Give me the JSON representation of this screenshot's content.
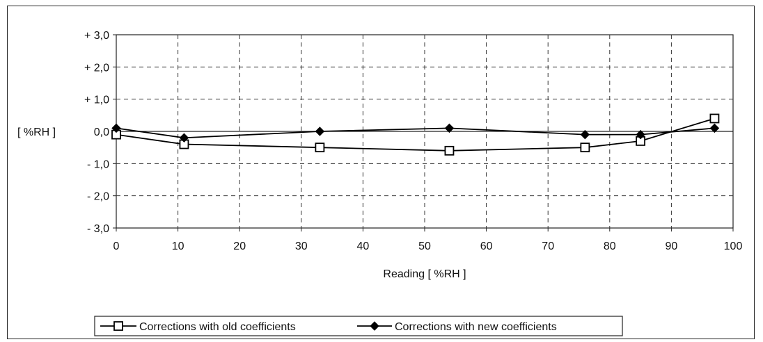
{
  "chart_data": {
    "type": "line",
    "title": "",
    "xlabel": "Reading [ %RH ]",
    "ylabel": "[ %RH ]",
    "xlim": [
      0,
      100
    ],
    "ylim": [
      -3,
      3
    ],
    "x_ticks": [
      0,
      10,
      20,
      30,
      40,
      50,
      60,
      70,
      80,
      90,
      100
    ],
    "x_tick_labels": [
      "0",
      "10",
      "20",
      "30",
      "40",
      "50",
      "60",
      "70",
      "80",
      "90",
      "100"
    ],
    "y_ticks": [
      3,
      2,
      1,
      0,
      -1,
      -2,
      -3
    ],
    "y_tick_labels": [
      "+ 3,0",
      "+ 2,0",
      "+ 1,0",
      "0,0",
      "- 1,0",
      "- 2,0",
      "- 3,0"
    ],
    "grid": true,
    "legend_position": "bottom",
    "series": [
      {
        "name": "Corrections with old coefficients",
        "marker": "square",
        "color": "#000000",
        "x": [
          0,
          11,
          33,
          54,
          76,
          85,
          97
        ],
        "y": [
          -0.1,
          -0.4,
          -0.5,
          -0.6,
          -0.5,
          -0.3,
          0.4
        ]
      },
      {
        "name": "Corrections with new coefficients",
        "marker": "diamond",
        "color": "#000000",
        "x": [
          0,
          11,
          33,
          54,
          76,
          85,
          97
        ],
        "y": [
          0.1,
          -0.2,
          0.0,
          0.1,
          -0.1,
          -0.1,
          0.1
        ]
      }
    ]
  }
}
